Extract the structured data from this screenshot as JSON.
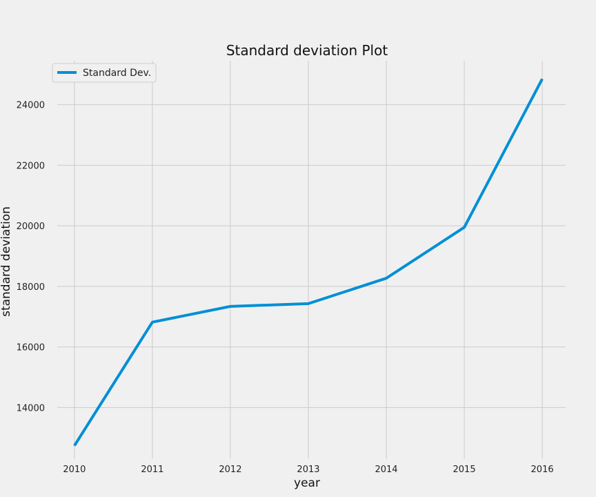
{
  "chart_data": {
    "type": "line",
    "title": "Standard deviation Plot",
    "xlabel": "year",
    "ylabel": "standard deviation",
    "x": [
      2010,
      2011,
      2012,
      2013,
      2014,
      2015,
      2016
    ],
    "series": [
      {
        "name": "Standard Dev.",
        "color": "#008fd5",
        "values": [
          12740,
          16820,
          17340,
          17430,
          18270,
          19950,
          24850
        ]
      }
    ],
    "xlim": [
      2009.78,
      2016.3
    ],
    "ylim": [
      12300,
      25450
    ],
    "xticks": [
      "2010",
      "2011",
      "2012",
      "2013",
      "2014",
      "2015",
      "2016"
    ],
    "yticks": [
      "14000",
      "16000",
      "18000",
      "20000",
      "22000",
      "24000"
    ],
    "grid": true,
    "legend_position": "top-left"
  }
}
